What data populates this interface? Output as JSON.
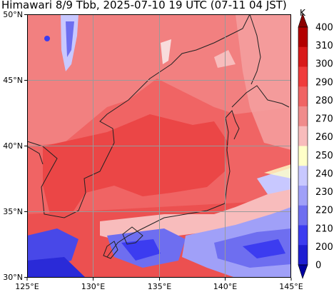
{
  "title": "Himawari 8/9 Tbb, 2025-07-10 19 UTC (07-11 04 JST)",
  "map": {
    "lon_range": [
      125,
      145
    ],
    "lat_range": [
      30,
      50
    ],
    "lon_ticks": [
      "125°E",
      "130°E",
      "135°E",
      "140°E",
      "145°E"
    ],
    "lat_ticks": [
      "50°N",
      "45°N",
      "40°N",
      "35°N",
      "30°N"
    ],
    "gridlines": true
  },
  "colorbar": {
    "unit": "K",
    "labels": [
      "400",
      "310",
      "300",
      "290",
      "280",
      "270",
      "260",
      "250",
      "240",
      "230",
      "220",
      "210",
      "200",
      "0"
    ],
    "colors": [
      "#8b0000",
      "#b30000",
      "#d91a1a",
      "#f03c3c",
      "#f06464",
      "#f08c8c",
      "#f8bcbc",
      "#ffffc8",
      "#c8c8ff",
      "#a0a0f8",
      "#6e6ef0",
      "#3c3cf0",
      "#1e1ed2",
      "#0000a0"
    ],
    "arrows": [
      "top",
      "bottom"
    ]
  }
}
